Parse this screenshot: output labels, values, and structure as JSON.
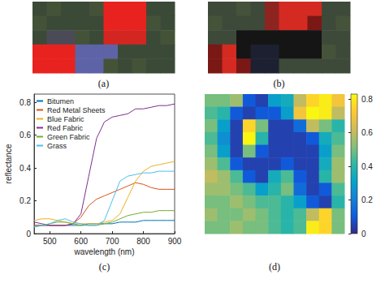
{
  "chart_data": [
    {
      "type": "image",
      "title": "(a)",
      "pixels": [
        [
          "#3b4a37",
          "#445338",
          "#3b4a37",
          "#3b4a37",
          "#445338",
          "#e8231f",
          "#e8231f",
          "#e8231f",
          "#3b4a37",
          "#3b4a37"
        ],
        [
          "#445338",
          "#3b4a37",
          "#3b4a37",
          "#3b4a37",
          "#3b4a37",
          "#e8231f",
          "#e8231f",
          "#e8231f",
          "#445338",
          "#3b4a37"
        ],
        [
          "#3b4a37",
          "#4b4b57",
          "#4b4b57",
          "#445338",
          "#3b4a37",
          "#d32620",
          "#d32620",
          "#d32620",
          "#3b4a37",
          "#445338"
        ],
        [
          "#e8231f",
          "#e8231f",
          "#e8231f",
          "#5d63a6",
          "#5d63a6",
          "#5d63a6",
          "#3b4a37",
          "#3b4a37",
          "#3b4a37",
          "#3b4a37"
        ],
        [
          "#e8231f",
          "#e8231f",
          "#e8231f",
          "#5d63a6",
          "#5d63a6",
          "#445338",
          "#3b4a37",
          "#445338",
          "#3b4a37",
          "#3b4a37"
        ]
      ]
    },
    {
      "type": "image",
      "title": "(b)",
      "pixels": [
        [
          "#3d4a3a",
          "#3d4a3a",
          "#445339",
          "#3d4a3a",
          "#8e2420",
          "#d42a22",
          "#d42a22",
          "#d42a22",
          "#3d4a3a",
          "#3d4a3a"
        ],
        [
          "#445339",
          "#3d4a3a",
          "#3d4a3a",
          "#3d4a3a",
          "#8e2420",
          "#d42a22",
          "#d42a22",
          "#7a1815",
          "#3d4a3a",
          "#445339"
        ],
        [
          "#3d4a3a",
          "#3d4a3a",
          "#151515",
          "#151515",
          "#151515",
          "#151515",
          "#151515",
          "#151515",
          "#3d4a3a",
          "#3d4a3a"
        ],
        [
          "#7a1815",
          "#d42a22",
          "#151515",
          "#1d2030",
          "#1d2030",
          "#151515",
          "#151515",
          "#151515",
          "#445339",
          "#3d4a3a"
        ],
        [
          "#7a1815",
          "#d42a22",
          "#7a1815",
          "#1d2030",
          "#1d2030",
          "#3d4a3a",
          "#3d4a3a",
          "#3d4a3a",
          "#3d4a3a",
          "#3d4a3a"
        ]
      ]
    },
    {
      "type": "line",
      "title": "(c)",
      "x_label": "wavelength (nm)",
      "y_label": "reflectance",
      "x": [
        450,
        475,
        500,
        525,
        550,
        575,
        600,
        625,
        650,
        675,
        700,
        725,
        750,
        775,
        800,
        825,
        850,
        875,
        900
      ],
      "series": [
        {
          "name": "Bitumen",
          "color": "#0072bd",
          "values": [
            0.05,
            0.05,
            0.05,
            0.05,
            0.05,
            0.05,
            0.05,
            0.06,
            0.06,
            0.06,
            0.06,
            0.07,
            0.07,
            0.07,
            0.08,
            0.08,
            0.08,
            0.08,
            0.08
          ]
        },
        {
          "name": "Red Metal Sheets",
          "color": "#d95319",
          "values": [
            0.05,
            0.05,
            0.05,
            0.05,
            0.05,
            0.06,
            0.1,
            0.17,
            0.21,
            0.23,
            0.25,
            0.27,
            0.29,
            0.31,
            0.3,
            0.28,
            0.27,
            0.27,
            0.27
          ]
        },
        {
          "name": "Blue Fabric",
          "color": "#edb120",
          "values": [
            0.08,
            0.09,
            0.09,
            0.08,
            0.07,
            0.06,
            0.06,
            0.06,
            0.06,
            0.07,
            0.08,
            0.12,
            0.22,
            0.32,
            0.38,
            0.41,
            0.42,
            0.43,
            0.44
          ]
        },
        {
          "name": "Red Fabric",
          "color": "#7e2f8e",
          "values": [
            0.07,
            0.06,
            0.05,
            0.05,
            0.05,
            0.06,
            0.12,
            0.35,
            0.58,
            0.68,
            0.71,
            0.72,
            0.73,
            0.76,
            0.76,
            0.77,
            0.78,
            0.78,
            0.79
          ]
        },
        {
          "name": "Green Fabric",
          "color": "#77ac30",
          "values": [
            0.04,
            0.05,
            0.06,
            0.07,
            0.07,
            0.06,
            0.05,
            0.05,
            0.05,
            0.06,
            0.07,
            0.09,
            0.11,
            0.12,
            0.13,
            0.13,
            0.14,
            0.14,
            0.14
          ]
        },
        {
          "name": "Grass",
          "color": "#4dbeee",
          "values": [
            0.04,
            0.05,
            0.06,
            0.08,
            0.09,
            0.07,
            0.06,
            0.05,
            0.05,
            0.08,
            0.2,
            0.32,
            0.35,
            0.36,
            0.37,
            0.37,
            0.38,
            0.38,
            0.38
          ]
        }
      ],
      "xlim": [
        450,
        900
      ],
      "xticks": [
        500,
        600,
        700,
        800,
        900
      ],
      "ylim": [
        0,
        0.85
      ],
      "yticks": [
        0,
        0.2,
        0.4,
        0.6,
        0.8
      ],
      "legend": "upper left",
      "grid": false
    },
    {
      "type": "heatmap",
      "title": "(d)",
      "cells": [
        [
          0.5,
          0.5,
          0.55,
          0.1,
          0.05,
          0.3,
          0.35,
          0.6,
          0.75,
          0.8,
          0.7
        ],
        [
          0.45,
          0.4,
          0.1,
          0.05,
          0.1,
          0.1,
          0.3,
          0.7,
          0.82,
          0.8,
          0.6
        ],
        [
          0.5,
          0.3,
          0.05,
          0.75,
          0.5,
          0.05,
          0.05,
          0.15,
          0.6,
          0.5,
          0.4
        ],
        [
          0.45,
          0.25,
          0.05,
          0.82,
          0.4,
          0.05,
          0.05,
          0.05,
          0.1,
          0.35,
          0.45
        ],
        [
          0.5,
          0.3,
          0.05,
          0.5,
          0.1,
          0.05,
          0.05,
          0.05,
          0.05,
          0.3,
          0.5
        ],
        [
          0.55,
          0.45,
          0.1,
          0.05,
          0.05,
          0.05,
          0.1,
          0.05,
          0.05,
          0.35,
          0.55
        ],
        [
          0.6,
          0.55,
          0.45,
          0.1,
          0.05,
          0.35,
          0.45,
          0.1,
          0.05,
          0.4,
          0.55
        ],
        [
          0.55,
          0.55,
          0.5,
          0.45,
          0.3,
          0.4,
          0.5,
          0.15,
          0.05,
          0.1,
          0.45
        ],
        [
          0.5,
          0.5,
          0.55,
          0.5,
          0.45,
          0.45,
          0.4,
          0.3,
          0.1,
          0.05,
          0.4
        ],
        [
          0.55,
          0.5,
          0.5,
          0.55,
          0.5,
          0.45,
          0.4,
          0.45,
          0.6,
          0.75,
          0.5
        ],
        [
          0.5,
          0.5,
          0.55,
          0.5,
          0.5,
          0.45,
          0.4,
          0.45,
          0.8,
          0.75,
          0.5
        ]
      ],
      "colorbar": {
        "range": [
          0,
          0.83
        ],
        "ticks": [
          0,
          0.2,
          0.4,
          0.6,
          0.8
        ]
      }
    }
  ]
}
